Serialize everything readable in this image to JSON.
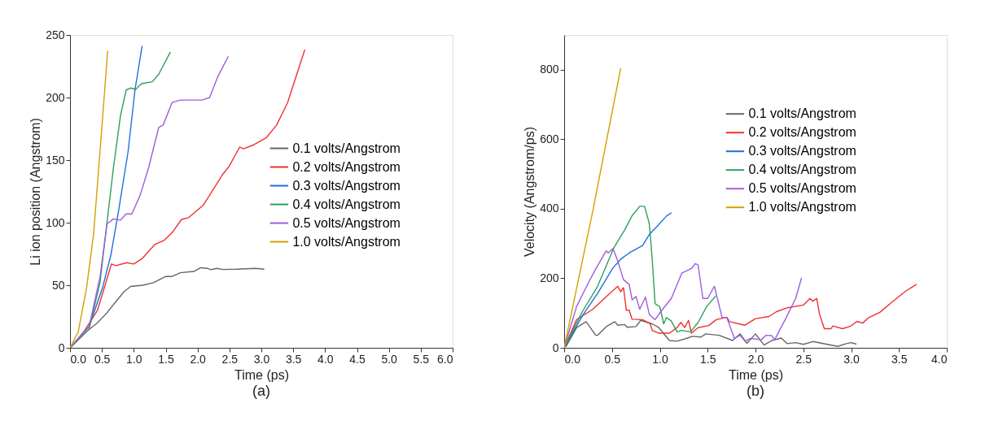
{
  "chart_data": [
    {
      "type": "line",
      "xlabel": "Time (ps)",
      "ylabel": "Li ion position (Angstrom)",
      "annotations": [
        "(a)"
      ],
      "xlim": [
        0,
        6
      ],
      "ylim": [
        0,
        250
      ],
      "xticks": [
        {
          "value": 0,
          "label": "0.0"
        },
        {
          "value": 0.5,
          "label": "0.5"
        },
        {
          "value": 1,
          "label": "1.0"
        },
        {
          "value": 1.5,
          "label": "1.5"
        },
        {
          "value": 2,
          "label": "2.0"
        },
        {
          "value": 2.5,
          "label": "2.5"
        },
        {
          "value": 3,
          "label": "3.0"
        },
        {
          "value": 3.5,
          "label": "3.5"
        },
        {
          "value": 4,
          "label": "4.0"
        },
        {
          "value": 4.5,
          "label": "4.5"
        },
        {
          "value": 5,
          "label": "5.0"
        },
        {
          "value": 5.5,
          "label": "5.5"
        },
        {
          "value": 6,
          "label": "6.0"
        }
      ],
      "yticks": [
        0,
        50,
        100,
        150,
        200,
        250
      ],
      "grid": false,
      "legend": "right",
      "marker": "none",
      "line_style": "solid",
      "series": [
        {
          "name": "0.1 volts/Angstrom",
          "color": "#666666",
          "x": [
            0,
            0.26,
            0.43,
            0.58,
            0.72,
            0.85,
            0.95,
            1.14,
            1.31,
            1.5,
            1.6,
            1.73,
            1.94,
            2.05,
            2.15,
            2.21,
            2.3,
            2.4,
            2.61,
            2.91,
            3.04
          ],
          "values": [
            0,
            13,
            20,
            28,
            37,
            45,
            49,
            50,
            52,
            57,
            57,
            60,
            61,
            64,
            63.5,
            62.4,
            63.5,
            62.6,
            62.8,
            63.5,
            62.8
          ]
        },
        {
          "name": "0.2 volts/Angstrom",
          "color": "#f03030",
          "x": [
            0,
            0.22,
            0.43,
            0.55,
            0.65,
            0.72,
            0.89,
            1.0,
            1.14,
            1.33,
            1.48,
            1.6,
            1.75,
            1.86,
            2.09,
            2.24,
            2.4,
            2.49,
            2.66,
            2.72,
            2.87,
            3.08,
            3.24,
            3.41,
            3.68
          ],
          "values": [
            0,
            13,
            30,
            50,
            67,
            65.7,
            68,
            67,
            71.7,
            82.6,
            86,
            92,
            102.6,
            104,
            114,
            126,
            139,
            144.6,
            160.4,
            159,
            162,
            168,
            178,
            195.6,
            238
          ]
        },
        {
          "name": "0.3 volts/Angstrom",
          "color": "#1f6fe0",
          "x": [
            0,
            0.3,
            0.51,
            0.64,
            0.76,
            0.91,
            1.02,
            1.13
          ],
          "values": [
            0,
            17,
            48,
            74,
            109,
            156.5,
            206.5,
            241
          ]
        },
        {
          "name": "0.4 volts/Angstrom",
          "color": "#2ca05a",
          "x": [
            0,
            0.3,
            0.47,
            0.58,
            0.68,
            0.79,
            0.88,
            0.95,
            1.03,
            1.12,
            1.29,
            1.39,
            1.57
          ],
          "values": [
            0,
            15,
            52,
            100,
            143.5,
            185,
            206,
            207.6,
            206.5,
            211,
            212.6,
            218.5,
            236
          ]
        },
        {
          "name": "0.5 volts/Angstrom",
          "color": "#a05ce0",
          "x": [
            0,
            0.3,
            0.47,
            0.58,
            0.68,
            0.79,
            0.88,
            0.97,
            1.1,
            1.23,
            1.39,
            1.46,
            1.6,
            1.73,
            1.9,
            2.07,
            2.19,
            2.32,
            2.48
          ],
          "values": [
            0,
            17,
            56.5,
            99,
            103,
            102,
            107,
            107,
            122,
            143.5,
            176,
            178,
            196,
            198,
            198,
            198,
            200,
            217,
            232.6
          ]
        },
        {
          "name": "1.0 volts/Angstrom",
          "color": "#d4a000",
          "x": [
            0,
            0.13,
            0.26,
            0.37,
            0.47,
            0.59
          ],
          "values": [
            0,
            13,
            48,
            91,
            156.5,
            237
          ]
        }
      ]
    },
    {
      "type": "line",
      "xlabel": "Time (ps)",
      "ylabel": "Velocity (Angstrom/ps)",
      "annotations": [
        "(b)"
      ],
      "xlim": [
        0,
        4
      ],
      "ylim": [
        0,
        900
      ],
      "xticks": [
        {
          "value": 0,
          "label": "0.0"
        },
        {
          "value": 0.5,
          "label": "0.5"
        },
        {
          "value": 1,
          "label": "1.0"
        },
        {
          "value": 1.5,
          "label": "1.5"
        },
        {
          "value": 2,
          "label": "2.0"
        },
        {
          "value": 2.5,
          "label": "2.5"
        },
        {
          "value": 3,
          "label": "3.0"
        },
        {
          "value": 3.5,
          "label": "3.5"
        },
        {
          "value": 4,
          "label": "4.0"
        }
      ],
      "yticks": [
        0,
        200,
        400,
        600,
        800
      ],
      "grid": false,
      "legend": "top right",
      "marker": "none",
      "line_style": "solid",
      "series": [
        {
          "name": "0.1 volts/Angstrom",
          "color": "#666666",
          "x": [
            0.02,
            0.13,
            0.23,
            0.33,
            0.35,
            0.44,
            0.53,
            0.56,
            0.63,
            0.66,
            0.75,
            0.8,
            0.92,
            0.99,
            1.1,
            1.18,
            1.29,
            1.34,
            1.43,
            1.48,
            1.62,
            1.76,
            1.84,
            1.91,
            2.0,
            2.09,
            2.17,
            2.27,
            2.33,
            2.42,
            2.5,
            2.6,
            2.75,
            2.86,
            2.95,
            3.0,
            3.05
          ],
          "values": [
            4,
            58,
            75,
            36,
            36,
            61,
            75,
            65,
            67,
            59,
            61,
            79,
            69,
            58,
            21,
            19,
            28,
            33,
            31,
            40,
            36,
            21,
            40,
            13,
            40,
            8,
            21,
            28,
            12,
            15,
            10,
            18,
            10,
            4,
            12,
            15,
            11
          ]
        },
        {
          "name": "0.2 volts/Angstrom",
          "color": "#f03030",
          "x": [
            0,
            0.13,
            0.3,
            0.48,
            0.56,
            0.59,
            0.62,
            0.65,
            0.68,
            0.71,
            0.82,
            0.9,
            0.92,
            0.99,
            1.1,
            1.18,
            1.22,
            1.26,
            1.3,
            1.33,
            1.4,
            1.51,
            1.59,
            1.7,
            1.73,
            1.89,
            2.0,
            2.14,
            2.22,
            2.33,
            2.5,
            2.57,
            2.6,
            2.64,
            2.67,
            2.72,
            2.79,
            2.81,
            2.91,
            3.0,
            3.06,
            3.12,
            3.18,
            3.3,
            3.43,
            3.57,
            3.68
          ],
          "values": [
            0,
            81,
            111,
            157,
            177,
            161,
            173,
            108,
            108,
            82,
            81,
            69,
            50,
            42,
            42,
            58,
            73,
            58,
            79,
            42,
            58,
            64,
            81,
            88,
            75,
            65,
            84,
            90,
            104,
            115,
            123,
            142,
            134,
            142,
            96,
            55,
            55,
            63,
            55,
            63,
            76,
            71,
            86,
            102,
            132,
            163,
            182
          ]
        },
        {
          "name": "0.3 volts/Angstrom",
          "color": "#1f6fe0",
          "x": [
            0,
            0.19,
            0.35,
            0.51,
            0.6,
            0.68,
            0.82,
            0.89,
            0.97,
            1.07,
            1.12
          ],
          "values": [
            0,
            92,
            157,
            230,
            257,
            273,
            294,
            326,
            349,
            379,
            388
          ]
        },
        {
          "name": "0.4 volts/Angstrom",
          "color": "#2ca05a",
          "x": [
            0,
            0.19,
            0.35,
            0.52,
            0.63,
            0.71,
            0.79,
            0.84,
            0.89,
            0.92,
            0.95,
            1.0,
            1.04,
            1.07,
            1.12,
            1.18,
            1.23,
            1.32,
            1.4,
            1.49,
            1.58
          ],
          "values": [
            0,
            104,
            177,
            288,
            338,
            380,
            407,
            407,
            357,
            257,
            127,
            118,
            69,
            87,
            77,
            46,
            50,
            46,
            73,
            119,
            148
          ]
        },
        {
          "name": "0.5 volts/Angstrom",
          "color": "#a05ce0",
          "x": [
            0,
            0.13,
            0.24,
            0.33,
            0.44,
            0.46,
            0.51,
            0.56,
            0.62,
            0.68,
            0.71,
            0.75,
            0.79,
            0.85,
            0.89,
            0.95,
            1.01,
            1.12,
            1.23,
            1.33,
            1.37,
            1.4,
            1.45,
            1.5,
            1.57,
            1.65,
            1.7,
            1.78,
            1.84,
            1.89,
            1.95,
            2.06,
            2.11,
            2.17,
            2.2,
            2.31,
            2.42,
            2.48
          ],
          "values": [
            0,
            119,
            180,
            227,
            279,
            273,
            286,
            250,
            196,
            182,
            138,
            148,
            111,
            146,
            96,
            81,
            104,
            142,
            215,
            228,
            242,
            238,
            142,
            142,
            177,
            88,
            87,
            27,
            36,
            19,
            27,
            23,
            36,
            35,
            23,
            81,
            142,
            200
          ]
        },
        {
          "name": "1.0 volts/Angstrom",
          "color": "#d4a000",
          "x": [
            0,
            0.3,
            0.59
          ],
          "values": [
            0,
            395,
            803
          ]
        }
      ]
    }
  ]
}
